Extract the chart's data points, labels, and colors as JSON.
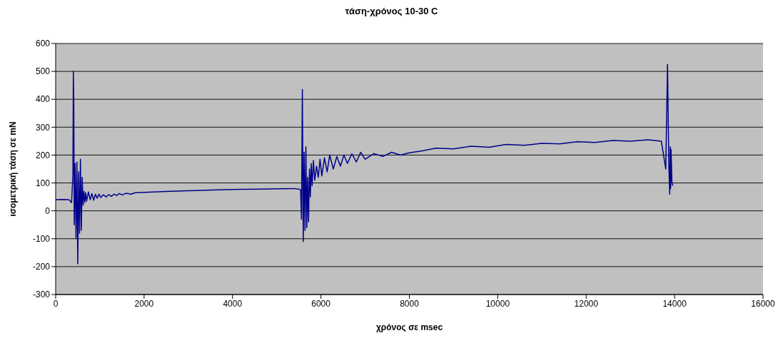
{
  "chart_data": {
    "type": "line",
    "title": "τάση-χρόνος 10-30 C",
    "xlabel": "χρόνος σε msec",
    "ylabel": "ισομετρική τάση σε mN",
    "xlim": [
      0,
      16000
    ],
    "xticks": [
      0,
      2000,
      4000,
      6000,
      8000,
      10000,
      12000,
      14000,
      16000
    ],
    "ylim": [
      -300,
      600
    ],
    "yticks": [
      -300,
      -200,
      -100,
      0,
      100,
      200,
      300,
      400,
      500,
      600
    ],
    "grid": "y",
    "marker": "none",
    "line_style": "solid",
    "series": [
      {
        "color": "#00008b",
        "x": [
          0,
          150,
          300,
          360,
          390,
          400,
          410,
          420,
          440,
          460,
          480,
          500,
          520,
          540,
          560,
          580,
          600,
          620,
          640,
          660,
          680,
          700,
          740,
          780,
          820,
          860,
          900,
          940,
          980,
          1020,
          1080,
          1140,
          1200,
          1260,
          1320,
          1380,
          1440,
          1500,
          1600,
          1700,
          1800,
          2000,
          2300,
          2600,
          3000,
          3400,
          3800,
          4200,
          4600,
          5000,
          5400,
          5500,
          5540,
          5560,
          5580,
          5600,
          5620,
          5640,
          5660,
          5680,
          5700,
          5720,
          5740,
          5760,
          5780,
          5800,
          5830,
          5860,
          5900,
          5940,
          5980,
          6020,
          6080,
          6140,
          6200,
          6280,
          6360,
          6440,
          6520,
          6600,
          6700,
          6800,
          6900,
          7000,
          7200,
          7400,
          7600,
          7800,
          8000,
          8300,
          8600,
          9000,
          9400,
          9800,
          10200,
          10600,
          11000,
          11400,
          11800,
          12200,
          12600,
          13000,
          13400,
          13700,
          13800,
          13840,
          13870,
          13890,
          13900,
          13910,
          13920,
          13940,
          13960
        ],
        "values": [
          40,
          41,
          40,
          30,
          130,
          500,
          380,
          -50,
          170,
          -100,
          175,
          -190,
          140,
          -80,
          185,
          -70,
          120,
          20,
          70,
          30,
          65,
          35,
          68,
          40,
          62,
          38,
          60,
          45,
          60,
          48,
          58,
          50,
          58,
          52,
          60,
          55,
          62,
          57,
          63,
          60,
          65,
          66,
          68,
          70,
          72,
          74,
          76,
          77,
          78,
          79,
          80,
          78,
          75,
          -30,
          435,
          -110,
          210,
          -70,
          230,
          -60,
          120,
          -40,
          150,
          50,
          170,
          90,
          180,
          110,
          160,
          120,
          185,
          125,
          190,
          140,
          200,
          150,
          195,
          160,
          200,
          170,
          205,
          175,
          210,
          185,
          205,
          195,
          210,
          200,
          208,
          215,
          225,
          222,
          232,
          228,
          238,
          235,
          242,
          240,
          248,
          245,
          252,
          250,
          255,
          250,
          150,
          525,
          160,
          60,
          230,
          80,
          220,
          100,
          90
        ]
      }
    ]
  }
}
